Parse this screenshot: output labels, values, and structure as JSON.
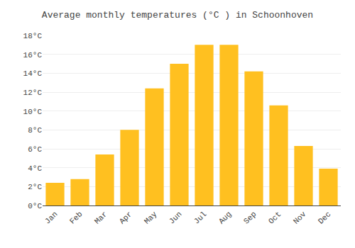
{
  "chart_data": {
    "type": "bar",
    "title": "Average monthly temperatures (°C ) in Schoonhoven",
    "categories": [
      "Jan",
      "Feb",
      "Mar",
      "Apr",
      "May",
      "Jun",
      "Jul",
      "Aug",
      "Sep",
      "Oct",
      "Nov",
      "Dec"
    ],
    "values": [
      2.4,
      2.8,
      5.4,
      8.0,
      12.4,
      15.0,
      17.0,
      17.0,
      14.2,
      10.6,
      6.3,
      3.9
    ],
    "color": "#FFC020",
    "ylim": [
      0,
      18
    ],
    "yticks": [
      {
        "value": 0,
        "label": "0°C"
      },
      {
        "value": 2,
        "label": "2°C"
      },
      {
        "value": 4,
        "label": "4°C"
      },
      {
        "value": 6,
        "label": "6°C"
      },
      {
        "value": 8,
        "label": "8°C"
      },
      {
        "value": 10,
        "label": "10°C"
      },
      {
        "value": 12,
        "label": "12°C"
      },
      {
        "value": 14,
        "label": "14°C"
      },
      {
        "value": 16,
        "label": "16°C"
      },
      {
        "value": 18,
        "label": "18°C"
      }
    ],
    "grid": true
  }
}
